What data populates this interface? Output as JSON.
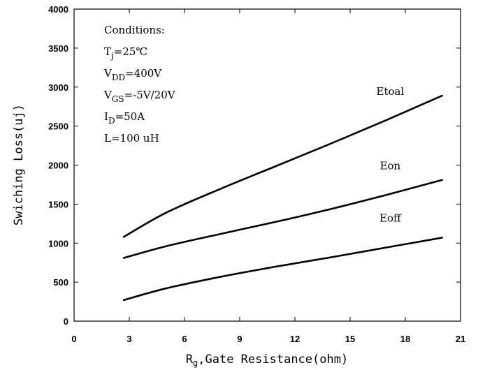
{
  "chart_data": {
    "type": "line",
    "xlabel_main": "R",
    "xlabel_sub": "g",
    "xlabel_rest": ",Gate Resistance(ohm)",
    "ylabel": "Swiching Loss(uj)",
    "xlim": [
      0,
      21
    ],
    "ylim": [
      0,
      4000
    ],
    "xticks": [
      0,
      3,
      6,
      9,
      12,
      15,
      18,
      21
    ],
    "yticks": [
      0,
      500,
      1000,
      1500,
      2000,
      2500,
      3000,
      3500,
      4000
    ],
    "grid": false,
    "series": [
      {
        "name": "Etoal",
        "x": [
          2.7,
          5,
          8,
          11,
          14,
          17,
          20
        ],
        "y": [
          1080,
          1390,
          1700,
          1990,
          2280,
          2580,
          2890
        ]
      },
      {
        "name": "Eon",
        "x": [
          2.7,
          5,
          8,
          11,
          14,
          17,
          20
        ],
        "y": [
          810,
          960,
          1120,
          1275,
          1440,
          1620,
          1810
        ]
      },
      {
        "name": "Eoff",
        "x": [
          2.7,
          5,
          8,
          11,
          14,
          17,
          20
        ],
        "y": [
          270,
          420,
          570,
          700,
          820,
          945,
          1070
        ]
      }
    ],
    "conditions": [
      {
        "main": "Conditions:",
        "sub": "",
        "rest": ""
      },
      {
        "main": "T",
        "sub": "j",
        "rest": "=25℃"
      },
      {
        "main": "V",
        "sub": "DD",
        "rest": "=400V"
      },
      {
        "main": "V",
        "sub": "GS",
        "rest": "=-5V/20V"
      },
      {
        "main": "I",
        "sub": "D",
        "rest": "=50A"
      },
      {
        "main": "L=100 uH",
        "sub": "",
        "rest": ""
      }
    ]
  }
}
